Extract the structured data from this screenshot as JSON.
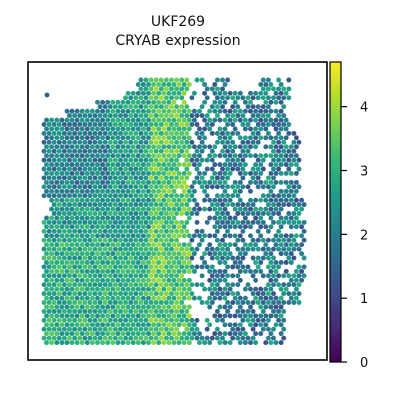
{
  "figure": {
    "title_line1": "UKF269",
    "title_line2": "CRYAB expression"
  },
  "chart_data": {
    "type": "heatmap",
    "subtype": "spatial-spot-map",
    "title": "UKF269",
    "subtitle": "CRYAB expression",
    "xlabel": "",
    "ylabel": "",
    "axis_ticks": false,
    "grid": false,
    "colormap": "viridis",
    "colorbar": {
      "range": [
        0,
        4.7
      ],
      "ticks": [
        0,
        1,
        2,
        3,
        4
      ],
      "tick_labels": [
        "0",
        "1",
        "2",
        "3",
        "4"
      ],
      "placement": "right"
    },
    "colormap_stops": [
      "#440154",
      "#482878",
      "#3e4a89",
      "#31688e",
      "#26828e",
      "#1f9e89",
      "#35b779",
      "#6ece58",
      "#b5de2b",
      "#fde725"
    ],
    "expression_regions": [
      {
        "region": "left tissue block",
        "typical_value": 2.6
      },
      {
        "region": "central band",
        "typical_value": 3.3
      },
      {
        "region": "right sparse region",
        "typical_value": 2.0
      }
    ]
  }
}
